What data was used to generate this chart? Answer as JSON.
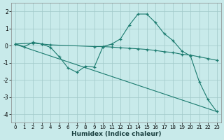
{
  "background_color": "#c8eaea",
  "grid_color": "#a0c8c8",
  "line_color": "#1a7a6e",
  "xlabel": "Humidex (Indice chaleur)",
  "xlim": [
    -0.5,
    23.5
  ],
  "ylim": [
    -4.5,
    2.5
  ],
  "yticks": [
    -4,
    -3,
    -2,
    -1,
    0,
    1,
    2
  ],
  "xticks": [
    0,
    1,
    2,
    3,
    4,
    5,
    6,
    7,
    8,
    9,
    10,
    11,
    12,
    13,
    14,
    15,
    16,
    17,
    18,
    19,
    20,
    21,
    22,
    23
  ],
  "line1_x": [
    0,
    1,
    2,
    3,
    4,
    5,
    6,
    7,
    8,
    9,
    10,
    11,
    12,
    13,
    14,
    15,
    16,
    17,
    18,
    19,
    20,
    21,
    22,
    23
  ],
  "line1_y": [
    0.1,
    -0.05,
    0.2,
    0.1,
    -0.1,
    -0.65,
    -1.3,
    -1.55,
    -1.2,
    -1.25,
    -0.05,
    0.1,
    0.4,
    1.2,
    1.85,
    1.85,
    1.35,
    0.7,
    0.3,
    -0.3,
    -0.6,
    -2.1,
    -3.15,
    -3.85
  ],
  "line2_x": [
    0,
    2,
    3,
    4,
    9,
    10,
    11,
    12,
    13,
    14,
    15,
    16,
    17,
    18,
    19,
    20,
    21,
    22,
    23
  ],
  "line2_y": [
    0.1,
    0.15,
    0.1,
    0.05,
    -0.05,
    -0.05,
    -0.08,
    -0.12,
    -0.15,
    -0.18,
    -0.22,
    -0.28,
    -0.35,
    -0.4,
    -0.5,
    -0.55,
    -0.65,
    -0.75,
    -0.85
  ],
  "line3_x": [
    0,
    23
  ],
  "line3_y": [
    0.08,
    -3.85
  ]
}
